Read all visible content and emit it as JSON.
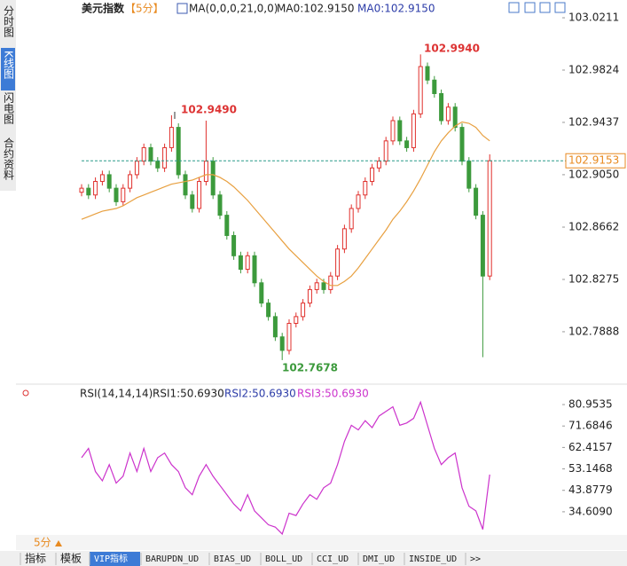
{
  "sidebar": {
    "tabs": [
      "分时图",
      "K线图",
      "闪电图",
      "合约资料"
    ]
  },
  "chart_data": [
    {
      "type": "candlestick",
      "title": "美元指数",
      "period": "【5分】",
      "indicator": "MA(0,0,0,21,0,0)",
      "ma_labels": [
        "MA0:102.9150",
        "MA0:102.9150"
      ],
      "up_color": "#e0302c",
      "down_color": "#3c9a3c",
      "ylim": [
        102.752,
        103.029
      ],
      "yticks": [
        103.0211,
        102.9824,
        102.9437,
        {
          "value": 102.905,
          "label": "102.9050"
        },
        102.8662,
        102.8275,
        102.7888
      ],
      "annotations": [
        "102.9490",
        "102.7678",
        "102.9940"
      ],
      "open": [
        102.892,
        102.895,
        102.89,
        102.9,
        102.905,
        102.895,
        102.885,
        102.895,
        102.905,
        102.915,
        102.925,
        102.915,
        102.91,
        102.925,
        102.94,
        102.905,
        102.89,
        102.88,
        102.9,
        102.915,
        102.89,
        102.875,
        102.86,
        102.845,
        102.835,
        102.845,
        102.825,
        102.81,
        102.8,
        102.785,
        102.775,
        102.795,
        102.8,
        102.81,
        102.82,
        102.825,
        102.82,
        102.83,
        102.85,
        102.865,
        102.88,
        102.89,
        102.9,
        102.91,
        102.915,
        102.93,
        102.945,
        102.93,
        102.925,
        102.95,
        102.985,
        102.975,
        102.965,
        102.945,
        102.955,
        102.94,
        102.915,
        102.895,
        102.875,
        102.83
      ],
      "high": [
        102.898,
        102.898,
        102.903,
        102.908,
        102.908,
        102.898,
        102.898,
        102.908,
        102.918,
        102.928,
        102.928,
        102.918,
        102.928,
        102.949,
        102.943,
        102.908,
        102.893,
        102.903,
        102.945,
        102.918,
        102.893,
        102.878,
        102.863,
        102.848,
        102.848,
        102.848,
        102.828,
        102.813,
        102.803,
        102.788,
        102.798,
        102.803,
        102.813,
        102.823,
        102.828,
        102.828,
        102.833,
        102.853,
        102.868,
        102.883,
        102.893,
        102.903,
        102.913,
        102.918,
        102.933,
        102.948,
        102.948,
        102.933,
        102.953,
        102.994,
        102.988,
        102.978,
        102.968,
        102.958,
        102.958,
        102.943,
        102.918,
        102.898,
        102.878,
        102.92
      ],
      "low": [
        102.889,
        102.887,
        102.887,
        102.897,
        102.892,
        102.882,
        102.882,
        102.892,
        102.902,
        102.912,
        102.912,
        102.907,
        102.907,
        102.922,
        102.902,
        102.887,
        102.877,
        102.877,
        102.897,
        102.887,
        102.872,
        102.857,
        102.842,
        102.832,
        102.832,
        102.822,
        102.807,
        102.797,
        102.782,
        102.7678,
        102.772,
        102.792,
        102.797,
        102.807,
        102.817,
        102.817,
        102.817,
        102.827,
        102.847,
        102.862,
        102.877,
        102.887,
        102.897,
        102.907,
        102.912,
        102.927,
        102.927,
        102.922,
        102.922,
        102.947,
        102.972,
        102.962,
        102.942,
        102.942,
        102.937,
        102.912,
        102.892,
        102.872,
        102.77,
        102.827
      ],
      "close": [
        102.895,
        102.89,
        102.9,
        102.905,
        102.895,
        102.885,
        102.895,
        102.905,
        102.915,
        102.925,
        102.915,
        102.91,
        102.925,
        102.94,
        102.905,
        102.89,
        102.88,
        102.9,
        102.915,
        102.89,
        102.875,
        102.86,
        102.845,
        102.835,
        102.845,
        102.825,
        102.81,
        102.8,
        102.785,
        102.775,
        102.795,
        102.8,
        102.81,
        102.82,
        102.825,
        102.82,
        102.83,
        102.85,
        102.865,
        102.88,
        102.89,
        102.9,
        102.91,
        102.915,
        102.93,
        102.945,
        102.93,
        102.925,
        102.95,
        102.985,
        102.975,
        102.965,
        102.945,
        102.955,
        102.94,
        102.915,
        102.895,
        102.875,
        102.83,
        102.9153
      ],
      "ma": {
        "color": "#e8a040",
        "values": [
          102.872,
          102.874,
          102.876,
          102.878,
          102.879,
          102.88,
          102.882,
          102.885,
          102.888,
          102.89,
          102.892,
          102.894,
          102.896,
          102.898,
          102.899,
          102.9,
          102.901,
          102.903,
          102.905,
          102.905,
          102.903,
          102.9,
          102.896,
          102.891,
          102.886,
          102.88,
          102.874,
          102.868,
          102.862,
          102.856,
          102.85,
          102.845,
          102.84,
          102.835,
          102.83,
          102.826,
          102.823,
          102.823,
          102.826,
          102.83,
          102.836,
          102.843,
          102.85,
          102.857,
          102.864,
          102.872,
          102.878,
          102.885,
          102.893,
          102.902,
          102.912,
          102.922,
          102.93,
          102.936,
          102.941,
          102.944,
          102.943,
          102.94,
          102.934,
          102.93
        ]
      },
      "price_line_color": "#2a9a8a",
      "price_label_color": "#e88a20"
    },
    {
      "type": "line",
      "title": "RSI(14,14,14)",
      "legend": [
        "RSI1:50.6930",
        "RSI2:50.6930",
        "RSI3:50.6930"
      ],
      "legend_colors": [
        "#222222",
        "#2c3ca8",
        "#cc33cc"
      ],
      "ylim": [
        24.6,
        87.1
      ],
      "yticks": [
        80.9535,
        71.6846,
        62.4157,
        53.1468,
        43.8779,
        {
          "value": 34.609,
          "label": "34.6090"
        }
      ],
      "series": [
        {
          "color": "#cc33cc",
          "values": [
            58,
            62,
            52,
            48,
            55,
            47,
            50,
            60,
            52,
            62,
            52,
            58,
            60,
            55,
            52,
            45,
            42,
            50,
            55,
            50,
            46,
            42,
            38,
            35,
            42,
            35,
            32,
            29,
            28,
            25,
            34,
            33,
            38,
            42,
            40,
            45,
            47,
            55,
            65,
            72,
            70,
            74,
            71,
            76,
            78,
            80,
            72,
            73,
            75,
            82,
            72,
            62,
            55,
            58,
            60,
            45,
            37,
            35,
            27,
            50.693
          ]
        }
      ]
    }
  ],
  "bottom": {
    "period": "5分",
    "tabs": [
      "指标",
      "模板",
      "VIP指标",
      "BARUPDN_UD",
      "BIAS_UD",
      "BOLL_UD",
      "CCI_UD",
      "DMI_UD",
      "INSIDE_UD",
      ">>"
    ]
  }
}
